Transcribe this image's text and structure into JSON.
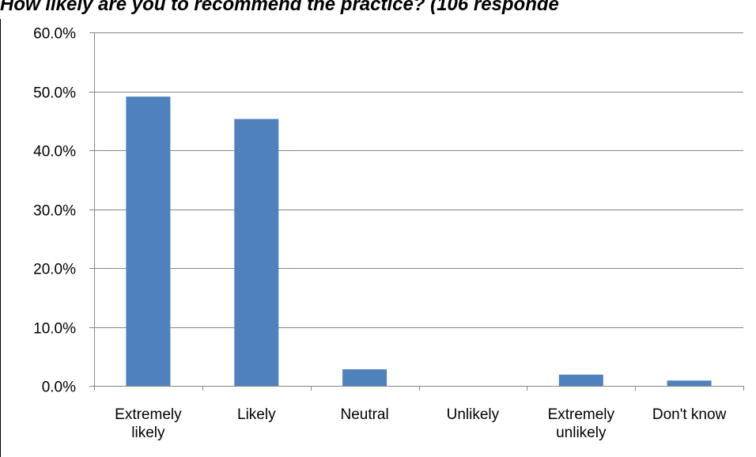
{
  "chart_data": {
    "type": "bar",
    "title": "How likely are you to recommend the practice? (106 responde",
    "categories": [
      [
        "Extremely",
        "likely"
      ],
      [
        "Likely"
      ],
      [
        "Neutral"
      ],
      [
        "Unlikely"
      ],
      [
        "Extremely",
        "unlikely"
      ],
      [
        "Don't know"
      ]
    ],
    "values": [
      49.1,
      45.3,
      2.8,
      0.0,
      1.9,
      0.9
    ],
    "ylim": [
      0,
      60
    ],
    "yticks": [
      "0.0%",
      "10.0%",
      "20.0%",
      "30.0%",
      "40.0%",
      "50.0%",
      "60.0%"
    ],
    "grid": true,
    "bar_color": "#4f81bd",
    "gridline_color": "#868686"
  }
}
